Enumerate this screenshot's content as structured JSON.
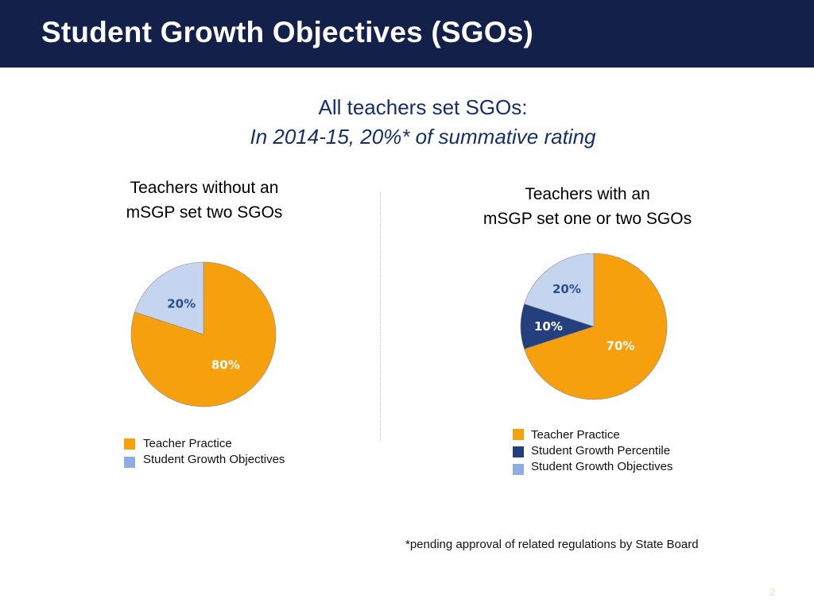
{
  "slide": {
    "title": "Student Growth Objectives (SGOs)",
    "subtitle_line1": "All teachers set SGOs:",
    "subtitle_line2": "In 2014-15, 20%* of summative rating",
    "footnote": "*pending approval of related regulations by State Board",
    "page_number": "2"
  },
  "colors": {
    "title_bar": "#12204a",
    "teacher_practice": "#f7a00d",
    "student_growth_percentile": "#233f7e",
    "student_growth_objectives": "#c6d5ef",
    "sgo_legend_swatch": "#8eaee3"
  },
  "chart_data": [
    {
      "type": "pie",
      "title_line1": "Teachers without an",
      "title_line2": "mSGP set two SGOs",
      "categories": [
        "Teacher Practice",
        "Student Growth Objectives"
      ],
      "values": [
        80,
        20
      ],
      "labels": [
        "80%",
        "20%"
      ],
      "legend": [
        "Teacher Practice",
        "Student Growth Objectives"
      ],
      "legend_placement": "bottom"
    },
    {
      "type": "pie",
      "title_line1": "Teachers with an",
      "title_line2": "mSGP set one or two SGOs",
      "categories": [
        "Teacher Practice",
        "Student Growth Percentile",
        "Student Growth Objectives"
      ],
      "values": [
        70,
        10,
        20
      ],
      "labels": [
        "70%",
        "10%",
        "20%"
      ],
      "legend": [
        "Teacher Practice",
        "Student Growth Percentile",
        "Student Growth Objectives"
      ],
      "legend_placement": "bottom"
    }
  ]
}
